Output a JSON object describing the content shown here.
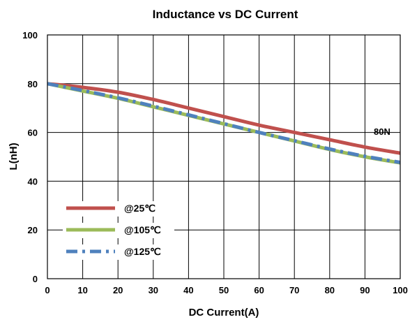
{
  "chart_data": {
    "type": "line",
    "title": "Inductance  vs DC Current",
    "xlabel": "DC Current(A)",
    "ylabel": "L(nH)",
    "xlim": [
      0,
      100
    ],
    "ylim": [
      0,
      100
    ],
    "x_ticks": [
      "0",
      "10",
      "20",
      "30",
      "40",
      "50",
      "60",
      "70",
      "80",
      "90",
      "100"
    ],
    "y_ticks": [
      "0",
      "20",
      "40",
      "60",
      "80",
      "100"
    ],
    "grid": true,
    "legend_placement": "lower-left",
    "annotation": "80N",
    "x": [
      0,
      10,
      20,
      30,
      40,
      50,
      60,
      70,
      80,
      90,
      100
    ],
    "series": [
      {
        "name": "@25℃",
        "color": "#c0504d",
        "style": "solid",
        "values": [
          80,
          78.5,
          76.5,
          73.5,
          70,
          66.5,
          63,
          60,
          57,
          54,
          51.5
        ]
      },
      {
        "name": "@105℃",
        "color": "#9bbb59",
        "style": "solid",
        "values": [
          80,
          77,
          74,
          70.5,
          67,
          63.5,
          60,
          56.5,
          53,
          50,
          47.5
        ]
      },
      {
        "name": "@125℃",
        "color": "#4f81bd",
        "style": "dashdot",
        "values": [
          80,
          77.2,
          74.2,
          70.8,
          67.2,
          63.6,
          60,
          56.6,
          53.2,
          50.2,
          47.7
        ]
      }
    ]
  }
}
